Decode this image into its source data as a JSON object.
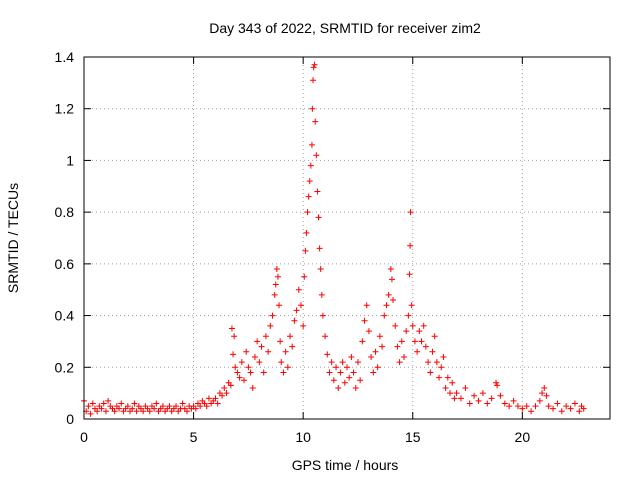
{
  "chart_data": {
    "type": "scatter",
    "title": "Day 343 of 2022, SRMTID for receiver zim2",
    "xlabel": "GPS time / hours",
    "ylabel": "SRMTID / TECUs",
    "xlim": [
      0,
      24
    ],
    "ylim": [
      0,
      1.4
    ],
    "xticks": [
      0,
      5,
      10,
      15,
      20
    ],
    "xtick_labels": [
      "0",
      "5",
      "10",
      "15",
      "20"
    ],
    "yticks": [
      0,
      0.2,
      0.4,
      0.6,
      0.8,
      1.0,
      1.2,
      1.4
    ],
    "ytick_labels": [
      "0",
      "0.2",
      "0.4",
      "0.6",
      "0.8",
      "1",
      "1.2",
      "1.4"
    ],
    "grid": true,
    "marker": "+",
    "color": "#ff0000",
    "series": [
      {
        "name": "zim2",
        "points": [
          [
            0.0,
            0.07
          ],
          [
            0.1,
            0.03
          ],
          [
            0.2,
            0.05
          ],
          [
            0.3,
            0.02
          ],
          [
            0.4,
            0.06
          ],
          [
            0.5,
            0.04
          ],
          [
            0.6,
            0.03
          ],
          [
            0.7,
            0.05
          ],
          [
            0.8,
            0.04
          ],
          [
            0.9,
            0.06
          ],
          [
            1.0,
            0.03
          ],
          [
            1.1,
            0.07
          ],
          [
            1.2,
            0.05
          ],
          [
            1.3,
            0.04
          ],
          [
            1.4,
            0.03
          ],
          [
            1.5,
            0.05
          ],
          [
            1.6,
            0.04
          ],
          [
            1.7,
            0.06
          ],
          [
            1.8,
            0.03
          ],
          [
            1.9,
            0.04
          ],
          [
            2.0,
            0.05
          ],
          [
            2.1,
            0.03
          ],
          [
            2.2,
            0.04
          ],
          [
            2.3,
            0.06
          ],
          [
            2.4,
            0.03
          ],
          [
            2.5,
            0.05
          ],
          [
            2.6,
            0.04
          ],
          [
            2.7,
            0.03
          ],
          [
            2.8,
            0.05
          ],
          [
            2.9,
            0.04
          ],
          [
            3.0,
            0.03
          ],
          [
            3.1,
            0.05
          ],
          [
            3.2,
            0.04
          ],
          [
            3.3,
            0.06
          ],
          [
            3.4,
            0.03
          ],
          [
            3.5,
            0.04
          ],
          [
            3.6,
            0.05
          ],
          [
            3.7,
            0.03
          ],
          [
            3.8,
            0.04
          ],
          [
            3.9,
            0.05
          ],
          [
            4.0,
            0.03
          ],
          [
            4.1,
            0.04
          ],
          [
            4.2,
            0.05
          ],
          [
            4.3,
            0.03
          ],
          [
            4.4,
            0.04
          ],
          [
            4.5,
            0.06
          ],
          [
            4.6,
            0.04
          ],
          [
            4.7,
            0.03
          ],
          [
            4.8,
            0.05
          ],
          [
            4.9,
            0.04
          ],
          [
            5.0,
            0.05
          ],
          [
            5.1,
            0.04
          ],
          [
            5.2,
            0.06
          ],
          [
            5.3,
            0.05
          ],
          [
            5.4,
            0.07
          ],
          [
            5.5,
            0.06
          ],
          [
            5.6,
            0.05
          ],
          [
            5.7,
            0.08
          ],
          [
            5.8,
            0.06
          ],
          [
            5.9,
            0.07
          ],
          [
            6.0,
            0.08
          ],
          [
            6.1,
            0.06
          ],
          [
            6.2,
            0.1
          ],
          [
            6.3,
            0.09
          ],
          [
            6.4,
            0.12
          ],
          [
            6.5,
            0.1
          ],
          [
            6.6,
            0.14
          ],
          [
            6.7,
            0.13
          ],
          [
            6.75,
            0.35
          ],
          [
            6.8,
            0.25
          ],
          [
            6.85,
            0.32
          ],
          [
            6.9,
            0.2
          ],
          [
            7.0,
            0.18
          ],
          [
            7.1,
            0.16
          ],
          [
            7.2,
            0.22
          ],
          [
            7.3,
            0.15
          ],
          [
            7.4,
            0.26
          ],
          [
            7.5,
            0.2
          ],
          [
            7.6,
            0.18
          ],
          [
            7.7,
            0.12
          ],
          [
            7.8,
            0.24
          ],
          [
            7.9,
            0.3
          ],
          [
            8.0,
            0.22
          ],
          [
            8.1,
            0.28
          ],
          [
            8.2,
            0.18
          ],
          [
            8.3,
            0.32
          ],
          [
            8.4,
            0.26
          ],
          [
            8.5,
            0.36
          ],
          [
            8.6,
            0.4
          ],
          [
            8.7,
            0.48
          ],
          [
            8.75,
            0.52
          ],
          [
            8.8,
            0.58
          ],
          [
            8.85,
            0.55
          ],
          [
            8.9,
            0.44
          ],
          [
            8.95,
            0.3
          ],
          [
            9.0,
            0.22
          ],
          [
            9.1,
            0.18
          ],
          [
            9.2,
            0.26
          ],
          [
            9.3,
            0.2
          ],
          [
            9.4,
            0.32
          ],
          [
            9.5,
            0.28
          ],
          [
            9.6,
            0.38
          ],
          [
            9.7,
            0.42
          ],
          [
            9.8,
            0.5
          ],
          [
            9.9,
            0.44
          ],
          [
            10.0,
            0.36
          ],
          [
            10.05,
            0.55
          ],
          [
            10.1,
            0.65
          ],
          [
            10.15,
            0.72
          ],
          [
            10.2,
            0.8
          ],
          [
            10.25,
            0.86
          ],
          [
            10.3,
            0.92
          ],
          [
            10.35,
            0.98
          ],
          [
            10.4,
            1.06
          ],
          [
            10.42,
            1.2
          ],
          [
            10.45,
            1.31
          ],
          [
            10.48,
            1.36
          ],
          [
            10.52,
            1.37
          ],
          [
            10.55,
            1.15
          ],
          [
            10.6,
            1.02
          ],
          [
            10.65,
            0.88
          ],
          [
            10.7,
            0.78
          ],
          [
            10.75,
            0.66
          ],
          [
            10.8,
            0.58
          ],
          [
            10.85,
            0.48
          ],
          [
            10.9,
            0.4
          ],
          [
            11.0,
            0.32
          ],
          [
            11.1,
            0.25
          ],
          [
            11.2,
            0.18
          ],
          [
            11.3,
            0.22
          ],
          [
            11.4,
            0.15
          ],
          [
            11.5,
            0.2
          ],
          [
            11.6,
            0.12
          ],
          [
            11.7,
            0.18
          ],
          [
            11.8,
            0.22
          ],
          [
            11.9,
            0.14
          ],
          [
            12.0,
            0.2
          ],
          [
            12.1,
            0.16
          ],
          [
            12.2,
            0.24
          ],
          [
            12.3,
            0.18
          ],
          [
            12.4,
            0.12
          ],
          [
            12.5,
            0.22
          ],
          [
            12.6,
            0.15
          ],
          [
            12.7,
            0.3
          ],
          [
            12.8,
            0.38
          ],
          [
            12.9,
            0.44
          ],
          [
            13.0,
            0.34
          ],
          [
            13.1,
            0.24
          ],
          [
            13.2,
            0.18
          ],
          [
            13.3,
            0.26
          ],
          [
            13.4,
            0.2
          ],
          [
            13.5,
            0.32
          ],
          [
            13.6,
            0.28
          ],
          [
            13.7,
            0.4
          ],
          [
            13.8,
            0.44
          ],
          [
            13.9,
            0.48
          ],
          [
            14.0,
            0.58
          ],
          [
            14.05,
            0.54
          ],
          [
            14.1,
            0.46
          ],
          [
            14.2,
            0.36
          ],
          [
            14.3,
            0.28
          ],
          [
            14.4,
            0.22
          ],
          [
            14.5,
            0.3
          ],
          [
            14.6,
            0.24
          ],
          [
            14.7,
            0.34
          ],
          [
            14.8,
            0.4
          ],
          [
            14.85,
            0.56
          ],
          [
            14.88,
            0.67
          ],
          [
            14.9,
            0.8
          ],
          [
            14.95,
            0.44
          ],
          [
            15.0,
            0.36
          ],
          [
            15.1,
            0.3
          ],
          [
            15.2,
            0.26
          ],
          [
            15.3,
            0.34
          ],
          [
            15.4,
            0.3
          ],
          [
            15.5,
            0.36
          ],
          [
            15.6,
            0.28
          ],
          [
            15.7,
            0.22
          ],
          [
            15.8,
            0.18
          ],
          [
            15.9,
            0.26
          ],
          [
            16.0,
            0.32
          ],
          [
            16.1,
            0.22
          ],
          [
            16.2,
            0.16
          ],
          [
            16.3,
            0.2
          ],
          [
            16.4,
            0.24
          ],
          [
            16.5,
            0.12
          ],
          [
            16.6,
            0.16
          ],
          [
            16.7,
            0.1
          ],
          [
            16.8,
            0.14
          ],
          [
            16.9,
            0.08
          ],
          [
            17.0,
            0.1
          ],
          [
            17.2,
            0.08
          ],
          [
            17.4,
            0.12
          ],
          [
            17.6,
            0.06
          ],
          [
            17.8,
            0.09
          ],
          [
            18.0,
            0.07
          ],
          [
            18.2,
            0.1
          ],
          [
            18.4,
            0.06
          ],
          [
            18.6,
            0.08
          ],
          [
            18.8,
            0.14
          ],
          [
            18.85,
            0.13
          ],
          [
            19.0,
            0.09
          ],
          [
            19.2,
            0.06
          ],
          [
            19.4,
            0.05
          ],
          [
            19.6,
            0.07
          ],
          [
            19.8,
            0.05
          ],
          [
            20.0,
            0.04
          ],
          [
            20.2,
            0.05
          ],
          [
            20.4,
            0.03
          ],
          [
            20.6,
            0.05
          ],
          [
            20.8,
            0.07
          ],
          [
            20.9,
            0.1
          ],
          [
            21.0,
            0.12
          ],
          [
            21.1,
            0.09
          ],
          [
            21.2,
            0.05
          ],
          [
            21.4,
            0.04
          ],
          [
            21.6,
            0.06
          ],
          [
            21.8,
            0.03
          ],
          [
            22.0,
            0.05
          ],
          [
            22.2,
            0.04
          ],
          [
            22.4,
            0.06
          ],
          [
            22.6,
            0.03
          ],
          [
            22.7,
            0.05
          ],
          [
            22.8,
            0.04
          ]
        ]
      }
    ]
  }
}
